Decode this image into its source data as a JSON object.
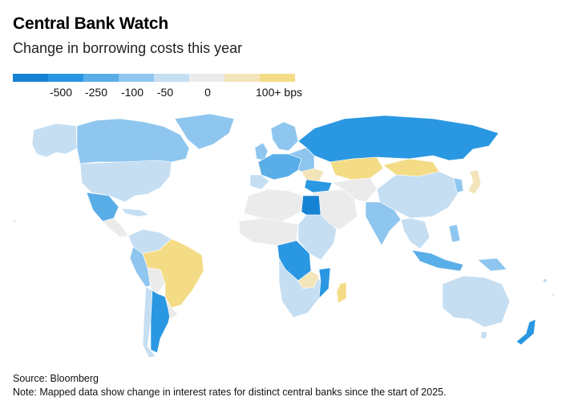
{
  "header": {
    "title": "Central Bank Watch",
    "subtitle": "Change in borrowing costs this year"
  },
  "legend": {
    "colors": [
      "#1682d4",
      "#2a97e2",
      "#5aaee8",
      "#8fc6ef",
      "#c5def2",
      "#ebebeb",
      "#f3e4ba",
      "#f4dc86"
    ],
    "labels": [
      "-500",
      "-250",
      "-100",
      "-50",
      "0",
      "100+ bps"
    ]
  },
  "footer": {
    "source": "Source: Bloomberg",
    "note": "Note: Mapped data show change in interest rates for distinct central banks since the start of 2025."
  },
  "palette": {
    "no_data": "#ffffff",
    "border": "#cfcfcf"
  }
}
